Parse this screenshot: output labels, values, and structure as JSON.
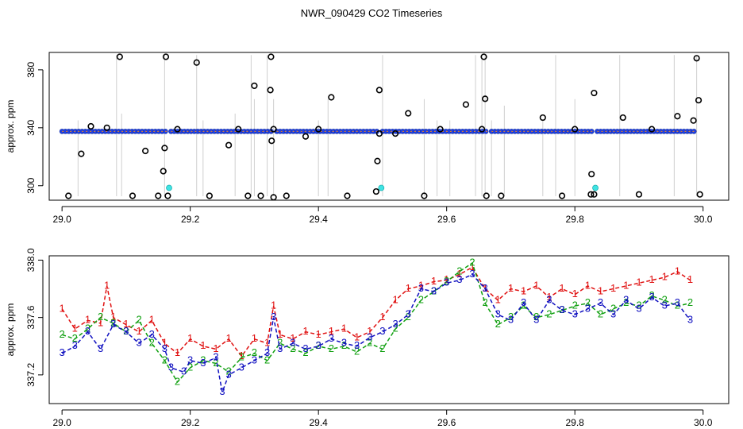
{
  "title": "NWR_090429  CO2 Timeseries",
  "colors": {
    "open_circle": "#000000",
    "blue_point": "#1f3fe0",
    "cyan_point": "#3fe3e3",
    "orange_point": "#e08030",
    "vertical_lines": "#a0a0a0",
    "series1": "#e01010",
    "series2": "#10a010",
    "series3": "#1010c0"
  },
  "chart_data": [
    {
      "type": "scatter",
      "title": "NWR_090429  CO2 Timeseries",
      "xlabel": "",
      "ylabel": "approx. ppm",
      "xlim": [
        28.98,
        30.04
      ],
      "ylim": [
        290,
        392
      ],
      "xticks": [
        29.0,
        29.2,
        29.4,
        29.6,
        29.8,
        30.0
      ],
      "xtick_labels": [
        "29.0",
        "29.2",
        "29.4",
        "29.6",
        "29.8",
        "30.0"
      ],
      "yticks": [
        300,
        340,
        380
      ],
      "ytick_labels": [
        "300",
        "340",
        "380"
      ],
      "baseline_ppm": 337.5,
      "baseline_segments": [
        [
          29.0,
          29.165
        ],
        [
          29.17,
          29.33
        ],
        [
          29.335,
          29.495
        ],
        [
          29.5,
          29.665
        ],
        [
          29.67,
          29.83
        ],
        [
          29.835,
          29.99
        ]
      ],
      "open_circles": {
        "x": [
          29.01,
          29.03,
          29.045,
          29.07,
          29.09,
          29.11,
          29.13,
          29.15,
          29.158,
          29.16,
          29.162,
          29.165,
          29.18,
          29.21,
          29.23,
          29.26,
          29.275,
          29.29,
          29.3,
          29.31,
          29.325,
          29.326,
          29.327,
          29.33,
          29.33,
          29.35,
          29.38,
          29.4,
          29.42,
          29.445,
          29.49,
          29.492,
          29.495,
          29.495,
          29.52,
          29.54,
          29.565,
          29.59,
          29.63,
          29.655,
          29.658,
          29.66,
          29.662,
          29.685,
          29.75,
          29.78,
          29.8,
          29.825,
          29.826,
          29.83,
          29.83,
          29.875,
          29.9,
          29.92,
          29.96,
          29.985,
          29.99,
          29.993,
          29.995
        ],
        "y": [
          293,
          322,
          341,
          340,
          389,
          293,
          324,
          293,
          310,
          326,
          389,
          293,
          339,
          385,
          293,
          328,
          339,
          293,
          369,
          293,
          366,
          389,
          331,
          339,
          292,
          293,
          334,
          339,
          361,
          293,
          296,
          317,
          366,
          336,
          336,
          350,
          293,
          339,
          356,
          339,
          389,
          360,
          293,
          293,
          347,
          293,
          339,
          294,
          308,
          294,
          364,
          347,
          294,
          339,
          348,
          345,
          388,
          359,
          294
        ]
      },
      "cyan_points": {
        "x": [
          29.167,
          29.498,
          29.832
        ],
        "y": [
          298.5,
          298.5,
          298.5
        ]
      },
      "vertical_lines": {
        "x": [
          29.025,
          29.085,
          29.093,
          29.16,
          29.21,
          29.22,
          29.27,
          29.295,
          29.3,
          29.32,
          29.33,
          29.4,
          29.415,
          29.5,
          29.565,
          29.585,
          29.605,
          29.645,
          29.655,
          29.66,
          29.67,
          29.69,
          29.75,
          29.77,
          29.8,
          29.87,
          29.955,
          29.99
        ],
        "y_low": [
          293,
          293,
          293,
          293,
          293,
          293,
          293,
          293,
          293,
          293,
          293,
          293,
          293,
          293,
          293,
          293,
          293,
          293,
          293,
          293,
          293,
          293,
          293,
          293,
          293,
          293,
          293,
          293
        ],
        "y_high": [
          345,
          390,
          350,
          390,
          390,
          345,
          350,
          390,
          360,
          390,
          360,
          345,
          360,
          390,
          360,
          345,
          345,
          390,
          390,
          390,
          345,
          355,
          345,
          390,
          360,
          390,
          390,
          390
        ]
      }
    },
    {
      "type": "line",
      "title": "",
      "xlabel": "",
      "ylabel": "approx. ppm",
      "xlim": [
        28.98,
        30.04
      ],
      "ylim": [
        337.0,
        338.03
      ],
      "xticks": [
        29.0,
        29.2,
        29.4,
        29.6,
        29.8,
        30.0
      ],
      "xtick_labels": [
        "29.0",
        "29.2",
        "29.4",
        "29.6",
        "29.8",
        "30.0"
      ],
      "yticks": [
        337.2,
        337.6,
        338.0
      ],
      "ytick_labels": [
        "337.2",
        "337.6",
        "338.0"
      ],
      "markers_are_series_numbers": true,
      "series": [
        {
          "name": "1",
          "x": [
            29.0,
            29.02,
            29.04,
            29.06,
            29.07,
            29.08,
            29.1,
            29.12,
            29.14,
            29.16,
            29.18,
            29.2,
            29.22,
            29.24,
            29.26,
            29.28,
            29.3,
            29.32,
            29.33,
            29.34,
            29.36,
            29.38,
            29.4,
            29.42,
            29.44,
            29.46,
            29.48,
            29.5,
            29.52,
            29.54,
            29.56,
            29.58,
            29.6,
            29.62,
            29.64,
            29.66,
            29.68,
            29.7,
            29.72,
            29.74,
            29.76,
            29.78,
            29.8,
            29.82,
            29.84,
            29.86,
            29.88,
            29.9,
            29.92,
            29.94,
            29.96,
            29.98
          ],
          "values": [
            337.66,
            337.52,
            337.58,
            337.56,
            337.82,
            337.6,
            337.55,
            337.5,
            337.58,
            337.42,
            337.35,
            337.45,
            337.4,
            337.38,
            337.45,
            337.33,
            337.45,
            337.42,
            337.68,
            337.48,
            337.45,
            337.5,
            337.48,
            337.5,
            337.52,
            337.46,
            337.5,
            337.6,
            337.72,
            337.8,
            337.82,
            337.85,
            337.86,
            337.9,
            337.95,
            337.8,
            337.72,
            337.8,
            337.78,
            337.82,
            337.74,
            337.8,
            337.76,
            337.82,
            337.78,
            337.8,
            337.82,
            337.84,
            337.86,
            337.88,
            337.92,
            337.86
          ]
        },
        {
          "name": "2",
          "x": [
            29.0,
            29.02,
            29.04,
            29.06,
            29.08,
            29.1,
            29.12,
            29.14,
            29.16,
            29.18,
            29.2,
            29.22,
            29.24,
            29.26,
            29.28,
            29.3,
            29.32,
            29.34,
            29.36,
            29.38,
            29.4,
            29.42,
            29.44,
            29.46,
            29.48,
            29.5,
            29.52,
            29.54,
            29.56,
            29.58,
            29.6,
            29.62,
            29.64,
            29.66,
            29.68,
            29.7,
            29.72,
            29.74,
            29.76,
            29.78,
            29.8,
            29.82,
            29.84,
            29.86,
            29.88,
            29.9,
            29.92,
            29.94,
            29.96,
            29.98
          ],
          "values": [
            337.48,
            337.45,
            337.52,
            337.6,
            337.56,
            337.5,
            337.58,
            337.42,
            337.3,
            337.15,
            337.25,
            337.3,
            337.28,
            337.22,
            337.32,
            337.35,
            337.3,
            337.42,
            337.38,
            337.35,
            337.4,
            337.38,
            337.4,
            337.36,
            337.42,
            337.38,
            337.52,
            337.6,
            337.72,
            337.78,
            337.85,
            337.92,
            337.98,
            337.7,
            337.55,
            337.6,
            337.68,
            337.6,
            337.62,
            337.65,
            337.68,
            337.7,
            337.62,
            337.66,
            337.7,
            337.68,
            337.75,
            337.72,
            337.68,
            337.7
          ]
        },
        {
          "name": "3",
          "x": [
            29.0,
            29.02,
            29.04,
            29.06,
            29.08,
            29.1,
            29.12,
            29.14,
            29.16,
            29.17,
            29.19,
            29.2,
            29.22,
            29.24,
            29.25,
            29.26,
            29.28,
            29.3,
            29.32,
            29.33,
            29.34,
            29.36,
            29.38,
            29.4,
            29.42,
            29.44,
            29.46,
            29.48,
            29.5,
            29.52,
            29.54,
            29.56,
            29.58,
            29.6,
            29.62,
            29.64,
            29.66,
            29.68,
            29.7,
            29.72,
            29.74,
            29.76,
            29.78,
            29.8,
            29.82,
            29.84,
            29.86,
            29.88,
            29.9,
            29.92,
            29.94,
            29.96,
            29.98
          ],
          "values": [
            337.35,
            337.4,
            337.5,
            337.38,
            337.55,
            337.5,
            337.42,
            337.48,
            337.38,
            337.25,
            337.22,
            337.3,
            337.28,
            337.32,
            337.08,
            337.2,
            337.25,
            337.3,
            337.35,
            337.6,
            337.38,
            337.42,
            337.38,
            337.4,
            337.45,
            337.42,
            337.4,
            337.46,
            337.5,
            337.55,
            337.62,
            337.8,
            337.78,
            337.84,
            337.86,
            337.9,
            337.8,
            337.62,
            337.58,
            337.7,
            337.58,
            337.72,
            337.65,
            337.62,
            337.66,
            337.7,
            337.62,
            337.72,
            337.66,
            337.74,
            337.68,
            337.7,
            337.58
          ]
        }
      ]
    }
  ]
}
